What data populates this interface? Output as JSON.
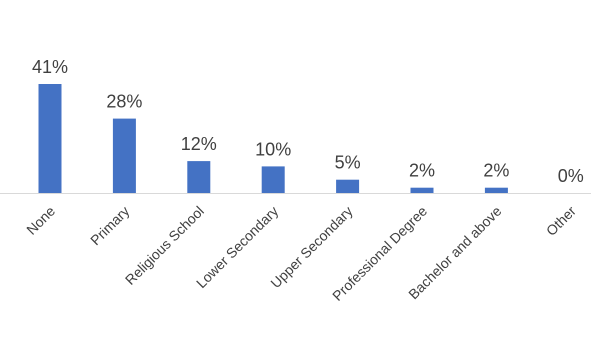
{
  "chart_data": {
    "type": "bar",
    "categories": [
      "None",
      "Primary",
      "Religious School",
      "Lower Secondary",
      "Upper Secondary",
      "Professional Degree",
      "Bachelor and above",
      "Other"
    ],
    "values": [
      41,
      28,
      12,
      10,
      5,
      2,
      2,
      0
    ],
    "data_labels": [
      "41%",
      "28%",
      "12%",
      "10%",
      "5%",
      "2%",
      "2%",
      "0%"
    ],
    "unit": "%",
    "ylim": [
      0,
      45
    ],
    "grid": false,
    "legend": "none",
    "colors": {
      "bar": "#4472C4",
      "axis": "#D9D9D9",
      "text": "#404040"
    }
  }
}
